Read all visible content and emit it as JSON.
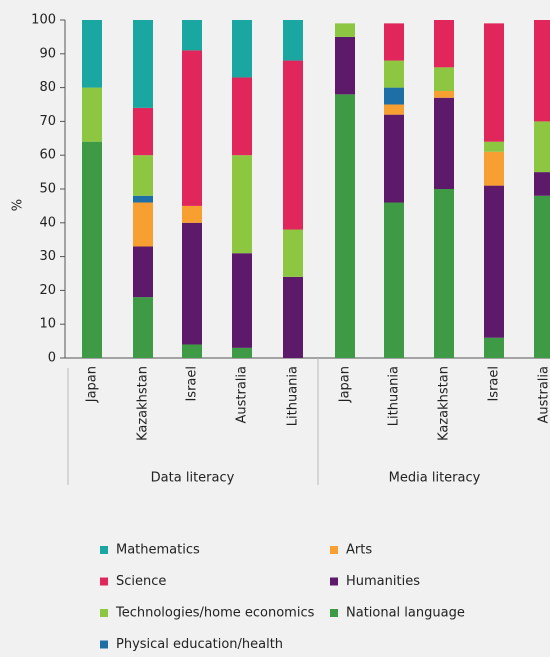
{
  "chart_data": {
    "type": "stacked_bar",
    "ylabel": "%",
    "ylim": [
      0,
      100
    ],
    "yticks": [
      0,
      10,
      20,
      30,
      40,
      50,
      60,
      70,
      80,
      90,
      100
    ],
    "groups": [
      {
        "name": "Data literacy",
        "categories": [
          "Japan",
          "Kazakhstan",
          "Israel",
          "Australia",
          "Lithuania"
        ]
      },
      {
        "name": "Media literacy",
        "categories": [
          "Japan",
          "Lithuania",
          "Kazakhstan",
          "Israel",
          "Australia"
        ]
      }
    ],
    "series": [
      {
        "name": "Mathematics",
        "color": "#1aa7a1",
        "values": [
          20,
          26,
          9,
          17,
          12,
          0,
          0,
          0,
          0,
          0
        ]
      },
      {
        "name": "Arts",
        "color": "#f7a031",
        "values": [
          0,
          13,
          5,
          0,
          0,
          0,
          3,
          2,
          10,
          0
        ]
      },
      {
        "name": "Science",
        "color": "#e1265b",
        "values": [
          0,
          14,
          46,
          23,
          50,
          0,
          11,
          14,
          35,
          30
        ]
      },
      {
        "name": "Humanities",
        "color": "#5d1a6a",
        "values": [
          0,
          15,
          36,
          28,
          24,
          17,
          26,
          27,
          45,
          7
        ]
      },
      {
        "name": "Technologies/home economics",
        "color": "#8dc641",
        "values": [
          16,
          12,
          0,
          29,
          14,
          4,
          8,
          7,
          3,
          15
        ]
      },
      {
        "name": "National language",
        "color": "#3f9a46",
        "values": [
          64,
          18,
          4,
          3,
          0,
          78,
          46,
          50,
          6,
          48
        ]
      },
      {
        "name": "Physical education/health",
        "color": "#1f6fa7",
        "values": [
          0,
          2,
          0,
          0,
          0,
          0,
          5,
          0,
          0,
          0
        ]
      }
    ]
  }
}
